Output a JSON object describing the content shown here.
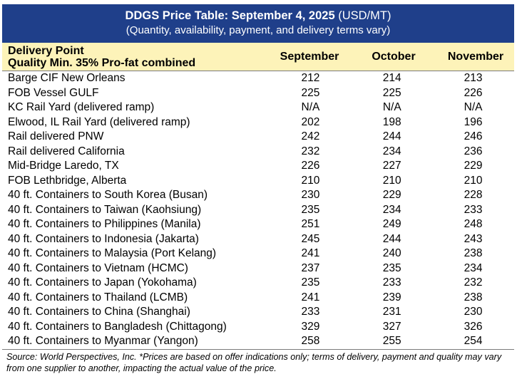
{
  "title": {
    "bold": "DDGS Price Table: September 4, 2025",
    "units": " (USD/MT)",
    "subtitle": "(Quantity, availability, payment, and delivery terms vary)"
  },
  "header": {
    "line1": "Delivery Point",
    "line2": "Quality Min. 35% Pro-fat combined",
    "columns": [
      "September",
      "October",
      "November"
    ]
  },
  "rows": [
    {
      "name": "Barge CIF New Orleans",
      "values": [
        "212",
        "214",
        "213"
      ]
    },
    {
      "name": "FOB Vessel GULF",
      "values": [
        "225",
        "225",
        "226"
      ]
    },
    {
      "name": "KC Rail Yard (delivered ramp)",
      "values": [
        "N/A",
        "N/A",
        "N/A"
      ]
    },
    {
      "name": "Elwood, IL Rail Yard (delivered ramp)",
      "values": [
        "202",
        "198",
        "196"
      ]
    },
    {
      "name": "Rail delivered PNW",
      "values": [
        "242",
        "244",
        "246"
      ]
    },
    {
      "name": "Rail delivered California",
      "values": [
        "232",
        "234",
        "236"
      ]
    },
    {
      "name": "Mid-Bridge Laredo, TX",
      "values": [
        "226",
        "227",
        "229"
      ]
    },
    {
      "name": "FOB Lethbridge, Alberta",
      "values": [
        "210",
        "210",
        "210"
      ]
    },
    {
      "name": "40 ft. Containers to South Korea (Busan)",
      "values": [
        "230",
        "229",
        "228"
      ]
    },
    {
      "name": "40 ft. Containers to Taiwan (Kaohsiung)",
      "values": [
        "235",
        "234",
        "233"
      ]
    },
    {
      "name": "40 ft. Containers to Philippines (Manila)",
      "values": [
        "251",
        "249",
        "248"
      ]
    },
    {
      "name": "40 ft. Containers to Indonesia (Jakarta)",
      "values": [
        "245",
        "244",
        "243"
      ]
    },
    {
      "name": "40 ft. Containers to Malaysia (Port Kelang)",
      "values": [
        "241",
        "240",
        "238"
      ]
    },
    {
      "name": "40 ft. Containers to Vietnam (HCMC)",
      "values": [
        "237",
        "235",
        "234"
      ]
    },
    {
      "name": "40 ft. Containers to Japan (Yokohama)",
      "values": [
        "235",
        "233",
        "232"
      ]
    },
    {
      "name": "40 ft. Containers to Thailand (LCMB)",
      "values": [
        "241",
        "239",
        "238"
      ]
    },
    {
      "name": "40 ft. Containers to China (Shanghai)",
      "values": [
        "233",
        "231",
        "230"
      ]
    },
    {
      "name": "40 ft. Containers to Bangladesh (Chittagong)",
      "values": [
        "329",
        "327",
        "326"
      ]
    },
    {
      "name": "40 ft. Containers to Myanmar (Yangon)",
      "values": [
        "258",
        "255",
        "254"
      ]
    }
  ],
  "source": "Source: World Perspectives, Inc. *Prices are based on offer indications only; terms of delivery, payment and quality may vary from one supplier to another, impacting the actual value of the price.",
  "colors": {
    "title_bg": "#1f3f8a",
    "header_bg": "#fdf3b9"
  }
}
